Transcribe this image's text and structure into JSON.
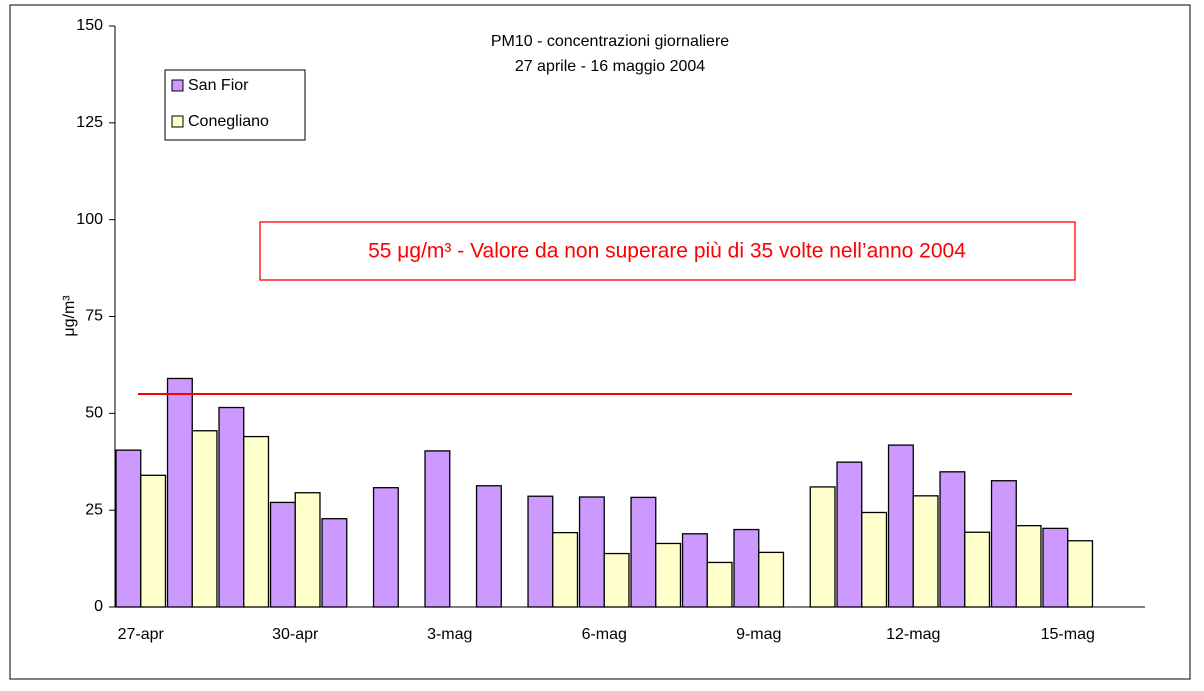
{
  "chart_data": {
    "type": "bar",
    "title": "PM10 - concentrazioni giornaliere",
    "subtitle": "27 aprile - 16 maggio 2004",
    "y_label": "μg/m³",
    "categories": [
      "27-apr",
      null,
      null,
      "30-apr",
      null,
      null,
      "3-mag",
      null,
      null,
      "6-mag",
      null,
      null,
      "9-mag",
      null,
      null,
      "12-mag",
      null,
      null,
      "15-mag",
      null
    ],
    "series": [
      {
        "name": "San Fior",
        "color": "#cc99ff",
        "values": [
          40.5,
          59,
          51.5,
          27,
          22.8,
          30.8,
          40.3,
          31.3,
          28.6,
          28.4,
          28.3,
          18.9,
          20,
          null,
          37.4,
          41.8,
          34.9,
          32.6,
          20.3,
          null
        ]
      },
      {
        "name": "Conegliano",
        "color": "#ffffcc",
        "values": [
          34,
          45.5,
          44,
          29.5,
          null,
          null,
          null,
          null,
          19.2,
          13.8,
          16.4,
          11.5,
          14.1,
          31,
          24.4,
          28.7,
          19.3,
          21,
          17.1,
          null
        ]
      }
    ],
    "ylim": [
      0,
      150
    ],
    "yticks": [
      0,
      25,
      50,
      75,
      100,
      125,
      150
    ],
    "reference_line": {
      "value": 55,
      "color": "#ff0000",
      "label": "55 μg/m³ - Valore da non superare più di 35 volte nell’anno 2004"
    },
    "legend": "top-left"
  }
}
